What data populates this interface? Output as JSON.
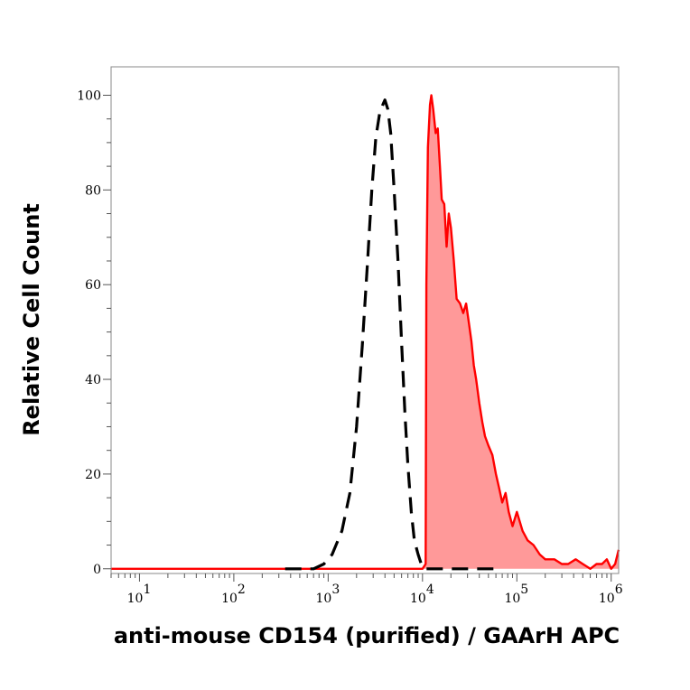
{
  "chart_data": {
    "type": "area",
    "title": "",
    "xlabel": "anti-mouse CD154 (purified) / GAArH APC",
    "ylabel": "Relative Cell Count",
    "x_scale": "log",
    "xlim": [
      5,
      1200000
    ],
    "ylim": [
      -1,
      106
    ],
    "x_ticks": [
      {
        "value": 10,
        "base": "10",
        "exp": "1"
      },
      {
        "value": 100,
        "base": "10",
        "exp": "2"
      },
      {
        "value": 1000,
        "base": "10",
        "exp": "3"
      },
      {
        "value": 10000,
        "base": "10",
        "exp": "4"
      },
      {
        "value": 100000,
        "base": "10",
        "exp": "5"
      },
      {
        "value": 1000000,
        "base": "10",
        "exp": "6"
      }
    ],
    "y_ticks": [
      0,
      20,
      40,
      60,
      80,
      100
    ],
    "grid": false,
    "legend": "none",
    "series": [
      {
        "style": "dashed",
        "color": "#000000",
        "fill": "none",
        "x": [
          350,
          500,
          700,
          900,
          1100,
          1400,
          1700,
          2000,
          2300,
          2600,
          2900,
          3200,
          3500,
          3800,
          4000,
          4300,
          4600,
          5000,
          5500,
          6000,
          6500,
          7000,
          7600,
          8200,
          9000,
          9700,
          10500,
          11200,
          12500,
          15000,
          20000,
          30000,
          40000,
          60000
        ],
        "values": [
          0,
          0,
          0,
          1,
          3,
          8,
          16,
          30,
          47,
          64,
          80,
          91,
          96,
          98,
          99,
          97,
          92,
          80,
          65,
          48,
          33,
          22,
          12,
          6,
          3,
          1,
          0,
          0,
          0,
          0,
          0,
          0,
          0,
          0
        ]
      },
      {
        "style": "solid",
        "color": "#ff0000",
        "fill": "#ff9999",
        "x": [
          5,
          5000,
          10000,
          10800,
          11000,
          11400,
          12000,
          12400,
          13000,
          13800,
          14500,
          15300,
          16000,
          17000,
          18000,
          19000,
          20000,
          21500,
          23000,
          25000,
          27000,
          29000,
          31000,
          33000,
          35000,
          37000,
          40000,
          43000,
          46000,
          50000,
          55000,
          60000,
          65000,
          70000,
          76000,
          82000,
          90000,
          100000,
          115000,
          130000,
          150000,
          175000,
          200000,
          250000,
          300000,
          350000,
          420000,
          500000,
          600000,
          700000,
          800000,
          900000,
          1000000,
          1100000,
          1200000
        ],
        "values": [
          0,
          0,
          0,
          1,
          60,
          89,
          98,
          100,
          97,
          92,
          93,
          85,
          78,
          77,
          68,
          75,
          72,
          65,
          57,
          56,
          54,
          56,
          52,
          48,
          43,
          40,
          35,
          31,
          28,
          26,
          24,
          20,
          17,
          14,
          16,
          12,
          9,
          12,
          8,
          6,
          5,
          3,
          2,
          2,
          1,
          1,
          2,
          1,
          0,
          1,
          1,
          2,
          0,
          1,
          4
        ]
      }
    ]
  }
}
